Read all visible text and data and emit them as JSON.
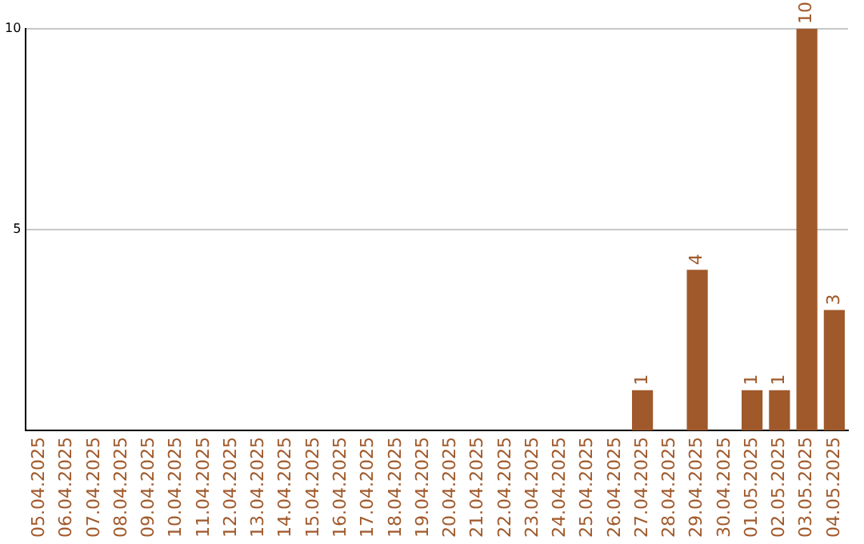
{
  "chart_data": {
    "type": "bar",
    "categories": [
      "05.04.2025",
      "06.04.2025",
      "07.04.2025",
      "08.04.2025",
      "09.04.2025",
      "10.04.2025",
      "11.04.2025",
      "12.04.2025",
      "13.04.2025",
      "14.04.2025",
      "15.04.2025",
      "16.04.2025",
      "17.04.2025",
      "18.04.2025",
      "19.04.2025",
      "20.04.2025",
      "21.04.2025",
      "22.04.2025",
      "23.04.2025",
      "24.04.2025",
      "25.04.2025",
      "26.04.2025",
      "27.04.2025",
      "28.04.2025",
      "29.04.2025",
      "30.04.2025",
      "01.05.2025",
      "02.05.2025",
      "03.05.2025",
      "04.05.2025"
    ],
    "values": [
      0,
      0,
      0,
      0,
      0,
      0,
      0,
      0,
      0,
      0,
      0,
      0,
      0,
      0,
      0,
      0,
      0,
      0,
      0,
      0,
      0,
      0,
      1,
      0,
      4,
      0,
      1,
      1,
      10,
      3
    ],
    "value_labels": [
      null,
      null,
      null,
      null,
      null,
      null,
      null,
      null,
      null,
      null,
      null,
      null,
      null,
      null,
      null,
      null,
      null,
      null,
      null,
      null,
      null,
      null,
      "1",
      null,
      "4",
      null,
      "1",
      "1",
      "10",
      "3"
    ],
    "color": "#a0592b",
    "ylim": [
      0,
      10
    ],
    "yticks": [
      5,
      10
    ],
    "grid": "y"
  }
}
